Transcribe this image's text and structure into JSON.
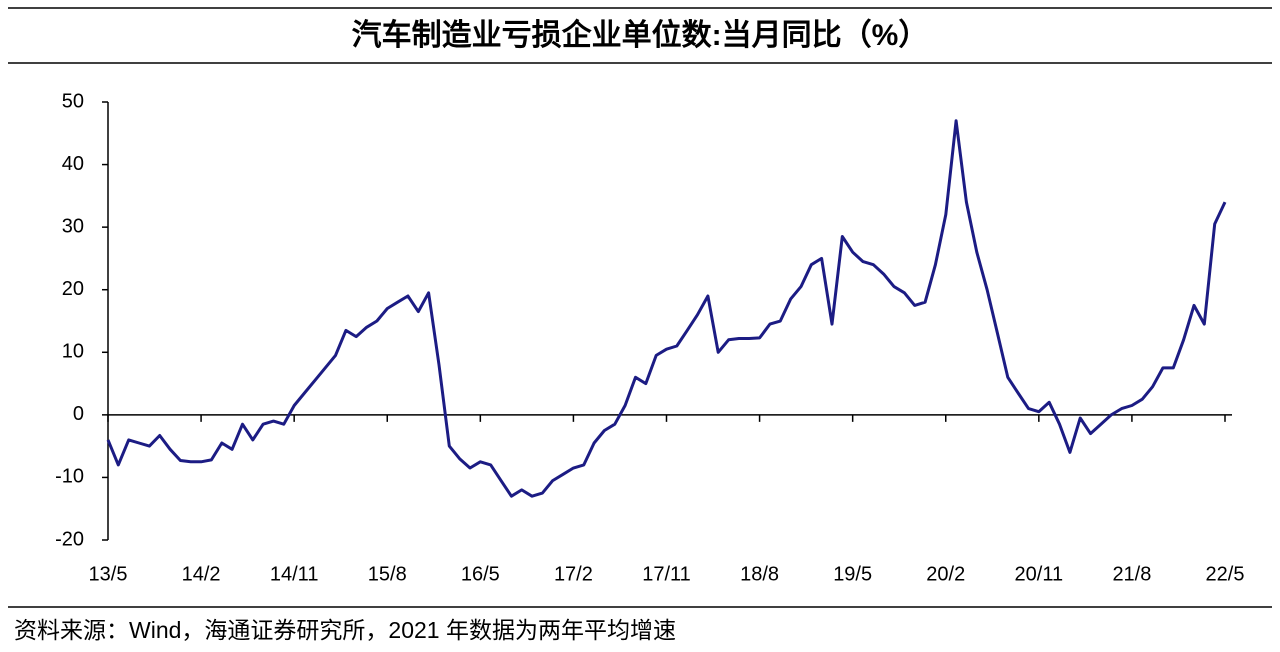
{
  "chart_data": {
    "type": "line",
    "title": "汽车制造业亏损企业单位数:当月同比（%）",
    "source": "资料来源：Wind，海通证券研究所，2021 年数据为两年平均增速",
    "categories": [
      "13/5",
      null,
      null,
      null,
      null,
      null,
      null,
      null,
      null,
      "14/2",
      null,
      null,
      null,
      null,
      null,
      null,
      null,
      null,
      "14/11",
      null,
      null,
      null,
      null,
      null,
      null,
      null,
      null,
      "15/8",
      null,
      null,
      null,
      null,
      null,
      null,
      null,
      null,
      "16/5",
      null,
      null,
      null,
      null,
      null,
      null,
      null,
      null,
      "17/2",
      null,
      null,
      null,
      null,
      null,
      null,
      null,
      null,
      "17/11",
      null,
      null,
      null,
      null,
      null,
      null,
      null,
      null,
      "18/8",
      null,
      null,
      null,
      null,
      null,
      null,
      null,
      null,
      "19/5",
      null,
      null,
      null,
      null,
      null,
      null,
      null,
      null,
      "20/2",
      null,
      null,
      null,
      null,
      null,
      null,
      null,
      null,
      "20/11",
      null,
      null,
      null,
      null,
      null,
      null,
      null,
      null,
      "21/8",
      null,
      null,
      null,
      null,
      null,
      null,
      null,
      null,
      "22/5"
    ],
    "series": [
      {
        "name": "汽车制造业亏损企业单位数:当月同比",
        "color": "#1c1c84",
        "values": [
          -4,
          -8,
          -4,
          -4.5,
          -5,
          -3.3,
          -5.5,
          -7.3,
          -7.5,
          -7.5,
          -7.2,
          -4.5,
          -5.5,
          -1.5,
          -4,
          -1.5,
          -1,
          -1.5,
          1.5,
          3.5,
          5.5,
          7.5,
          9.5,
          13.5,
          12.5,
          14,
          15,
          17,
          18,
          19,
          16.5,
          19.5,
          8,
          -5,
          -7,
          -8.5,
          -7.5,
          -8,
          -10.5,
          -13,
          -12,
          -13,
          -12.5,
          -10.5,
          -9.5,
          -8.5,
          -8,
          -4.5,
          -2.5,
          -1.5,
          1.5,
          6,
          5,
          9.5,
          10.5,
          11,
          13.5,
          16,
          19,
          10,
          12,
          12.2,
          12.2,
          12.3,
          14.5,
          15,
          18.5,
          20.5,
          24,
          25,
          14.5,
          28.5,
          26,
          24.5,
          24,
          22.5,
          20.5,
          19.5,
          17.5,
          18,
          24,
          32,
          47,
          34,
          26,
          20,
          13,
          6,
          3.5,
          1,
          0.5,
          2,
          -1.5,
          -6,
          -0.5,
          -3,
          -1.5,
          0,
          1,
          1.5,
          2.5,
          4.5,
          7.5,
          7.5,
          12,
          17.5,
          14.5,
          30.5,
          34
        ]
      }
    ],
    "ylim": [
      -20,
      50
    ],
    "yticks": [
      -20,
      -10,
      0,
      10,
      20,
      30,
      40,
      50
    ],
    "grid": false
  }
}
